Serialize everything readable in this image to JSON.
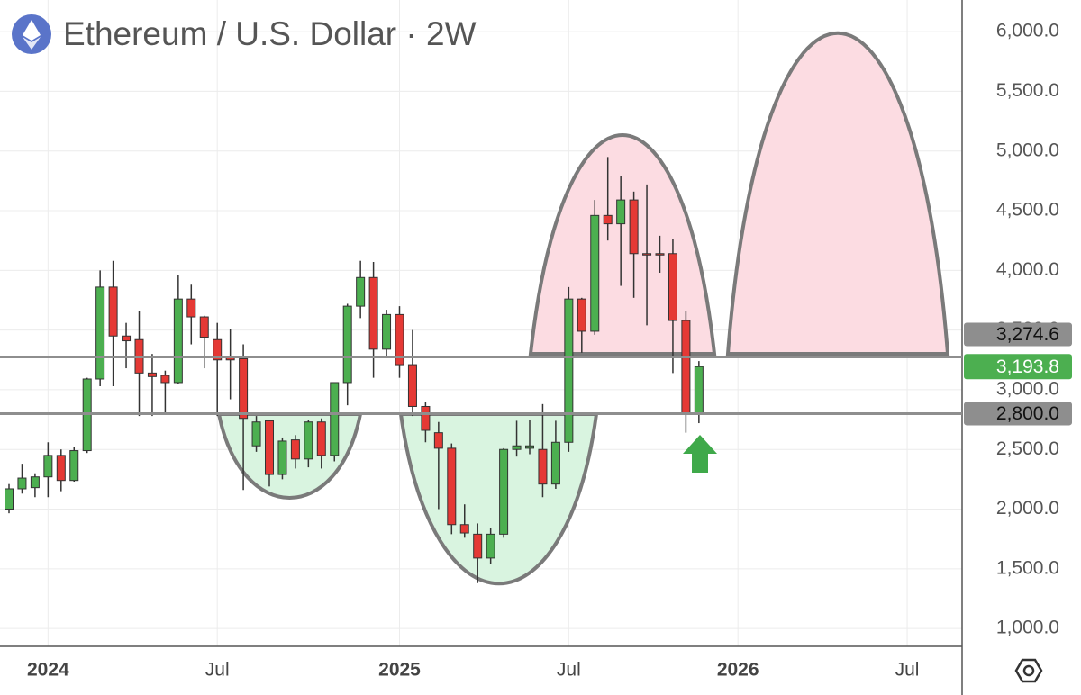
{
  "chart_data": {
    "type": "candlestick",
    "title": "Ethereum / U.S. Dollar · 2W",
    "categories": [
      null,
      null,
      null,
      "2024",
      null,
      null,
      null,
      null,
      null,
      null,
      null,
      null,
      null,
      null,
      null,
      null,
      "Jul",
      null,
      null,
      null,
      null,
      null,
      null,
      null,
      null,
      null,
      null,
      null,
      null,
      null,
      "2025",
      null,
      null,
      null,
      null,
      null,
      null,
      null,
      null,
      null,
      null,
      null,
      null,
      "Jul",
      null,
      null,
      null,
      null,
      null,
      null,
      null,
      null,
      null,
      null,
      null,
      null,
      "2026",
      null,
      null,
      null,
      null,
      null,
      null,
      null,
      null,
      null,
      null,
      null,
      null,
      "Jul",
      null,
      null,
      null,
      null
    ],
    "series": [
      {
        "up_color": "#4caf50",
        "down_color": "#e53935",
        "open": [
          2000,
          2170,
          2180,
          2270,
          2450,
          2240,
          2490,
          3090,
          3860,
          3450,
          3420,
          3140,
          3120,
          3060,
          3760,
          3610,
          3420,
          3270,
          3260,
          2530,
          2740,
          2290,
          2580,
          2420,
          2730,
          2450,
          3060,
          3700,
          3940,
          3340,
          3630,
          3210,
          2860,
          2640,
          2510,
          1870,
          1790,
          1590,
          1790,
          2500,
          2510,
          2500,
          2210,
          2560,
          3760,
          3490,
          4460,
          4390,
          4590,
          4140,
          4140,
          4140,
          3580,
          2800,
          null,
          null,
          null,
          null,
          null,
          null,
          null,
          null,
          null,
          null,
          null,
          null,
          null,
          null,
          null,
          null,
          null,
          null,
          null,
          null
        ],
        "high": [
          2210,
          2380,
          2300,
          2560,
          2500,
          2520,
          3100,
          4000,
          4080,
          3560,
          3660,
          3300,
          3160,
          3960,
          3880,
          3620,
          3560,
          3510,
          3380,
          2780,
          2750,
          2600,
          2620,
          2750,
          2760,
          3060,
          3720,
          4080,
          4070,
          3670,
          3700,
          3500,
          2900,
          2730,
          2550,
          2040,
          1880,
          1840,
          2510,
          2740,
          2750,
          2880,
          2740,
          3860,
          3770,
          4590,
          4950,
          4790,
          4660,
          4720,
          4290,
          4260,
          3660,
          3240,
          null,
          null,
          null,
          null,
          null,
          null,
          null,
          null,
          null,
          null,
          null,
          null,
          null,
          null,
          null,
          null,
          null,
          null,
          null,
          null
        ],
        "low": [
          1965,
          2130,
          2100,
          2100,
          2150,
          2230,
          2470,
          3030,
          3030,
          3180,
          2780,
          2780,
          2800,
          3050,
          3380,
          3180,
          2780,
          2920,
          2160,
          2480,
          2190,
          2250,
          2340,
          2350,
          2340,
          2400,
          2870,
          3600,
          3100,
          3270,
          3100,
          2780,
          2560,
          2000,
          1790,
          1760,
          1380,
          1540,
          1760,
          2440,
          2460,
          2100,
          2170,
          2480,
          3310,
          3460,
          4250,
          3870,
          3770,
          3540,
          3980,
          3140,
          2640,
          2720,
          null,
          null,
          null,
          null,
          null,
          null,
          null,
          null,
          null,
          null,
          null,
          null,
          null,
          null,
          null,
          null,
          null,
          null,
          null,
          null
        ],
        "close": [
          2170,
          2260,
          2270,
          2450,
          2240,
          2490,
          3090,
          3860,
          3450,
          3410,
          3140,
          3110,
          3060,
          3760,
          3610,
          3440,
          3250,
          3250,
          2760,
          2730,
          2290,
          2570,
          2420,
          2730,
          2450,
          3060,
          3700,
          3940,
          3340,
          3630,
          3210,
          2860,
          2660,
          2510,
          1870,
          1800,
          1590,
          1790,
          2500,
          2530,
          2530,
          2210,
          2560,
          3760,
          3490,
          4460,
          4390,
          4590,
          4140,
          4130,
          4130,
          3580,
          2800,
          3193.8,
          null,
          null,
          null,
          null,
          null,
          null,
          null,
          null,
          null,
          null,
          null,
          null,
          null,
          null,
          null,
          null,
          null,
          null,
          null,
          null
        ]
      }
    ],
    "ylim": [
      850,
      6265
    ],
    "yticks": [
      {
        "value": 1000,
        "label": "1,000.0"
      },
      {
        "value": 1500,
        "label": "1,500.0"
      },
      {
        "value": 2000,
        "label": "2,000.0"
      },
      {
        "value": 2500,
        "label": "2,500.0"
      },
      {
        "value": 3000,
        "label": "3,000.0"
      },
      {
        "value": 3500,
        "label": "3,500.0"
      },
      {
        "value": 4000,
        "label": "4,000.0"
      },
      {
        "value": 4500,
        "label": "4,500.0"
      },
      {
        "value": 5000,
        "label": "5,000.0"
      },
      {
        "value": 5500,
        "label": "5,500.0"
      },
      {
        "value": 6000,
        "label": "6,000.0"
      }
    ],
    "price_lines": [
      {
        "value": 3274.6,
        "label": "3,274.6"
      },
      {
        "value": 2800,
        "label": "2,800.0"
      }
    ],
    "last_price": {
      "value": 3193.8,
      "label": "3,193.8"
    },
    "grid": true
  }
}
